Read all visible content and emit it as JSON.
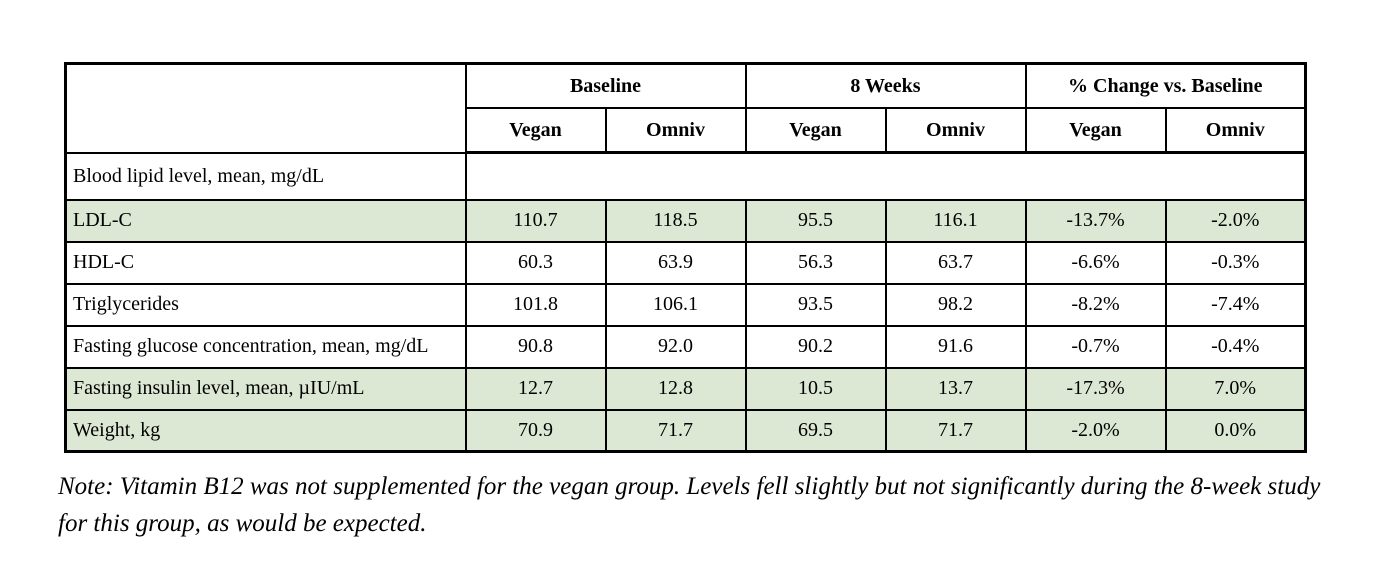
{
  "table": {
    "column_groups": [
      {
        "label": "Baseline"
      },
      {
        "label": "8 Weeks"
      },
      {
        "label": "% Change vs. Baseline"
      }
    ],
    "sub_headers": [
      "Vegan",
      "Omniv",
      "Vegan",
      "Omniv",
      "Vegan",
      "Omniv"
    ],
    "section_row": {
      "label": "Blood lipid level, mean, mg/dL"
    },
    "rows": [
      {
        "label": "LDL-C",
        "values": [
          "110.7",
          "118.5",
          "95.5",
          "116.1",
          "-13.7%",
          "-2.0%"
        ],
        "highlight": true
      },
      {
        "label": "HDL-C",
        "values": [
          "60.3",
          "63.9",
          "56.3",
          "63.7",
          "-6.6%",
          "-0.3%"
        ],
        "highlight": false
      },
      {
        "label": "Triglycerides",
        "values": [
          "101.8",
          "106.1",
          "93.5",
          "98.2",
          "-8.2%",
          "-7.4%"
        ],
        "highlight": false
      },
      {
        "label": "Fasting glucose concentration, mean, mg/dL",
        "values": [
          "90.8",
          "92.0",
          "90.2",
          "91.6",
          "-0.7%",
          "-0.4%"
        ],
        "highlight": false
      },
      {
        "label": "Fasting insulin level, mean, µIU/mL",
        "values": [
          "12.7",
          "12.8",
          "10.5",
          "13.7",
          "-17.3%",
          "7.0%"
        ],
        "highlight": true
      },
      {
        "label": "Weight, kg",
        "values": [
          "70.9",
          "71.7",
          "69.5",
          "71.7",
          "-2.0%",
          "0.0%"
        ],
        "highlight": true
      }
    ]
  },
  "note": "Note: Vitamin B12 was not supplemented for the vegan group. Levels fell slightly but not significantly during the 8-week study for this group, as would be expected.",
  "colors": {
    "highlight_green": "#dce8d4",
    "border": "#000000"
  }
}
